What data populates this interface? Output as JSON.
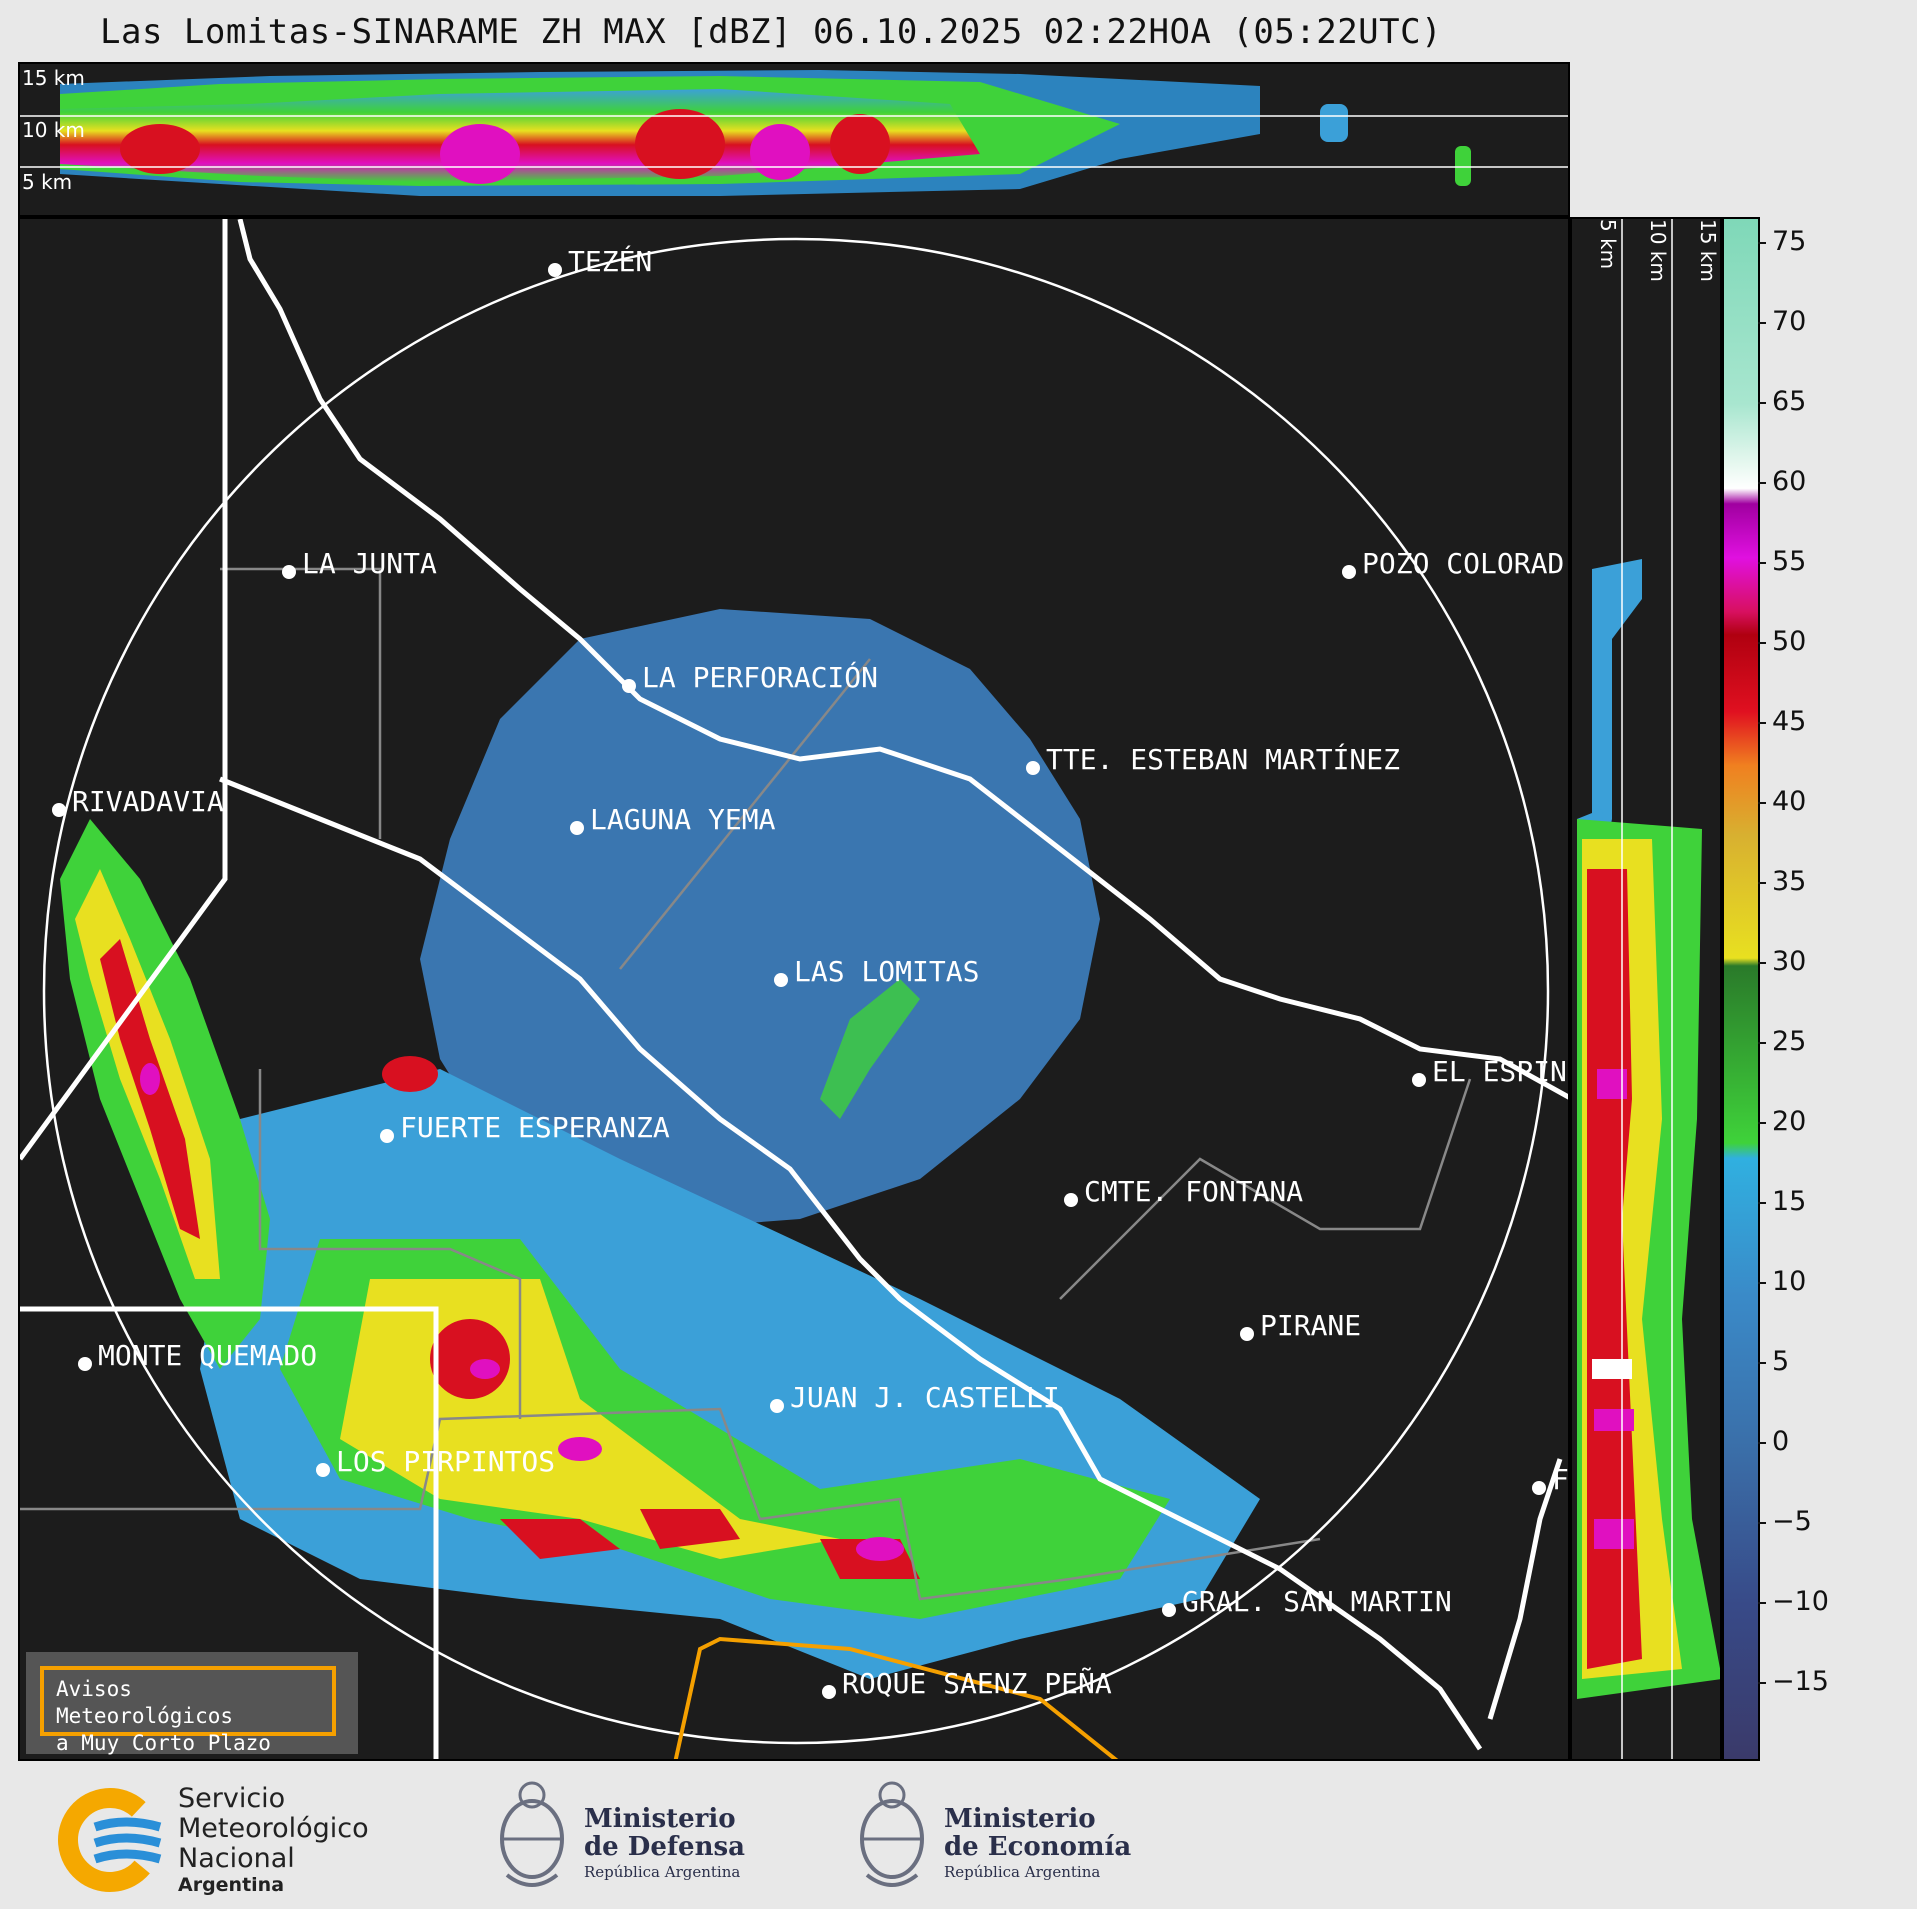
{
  "title": "Las Lomitas-SINARAME ZH MAX [dBZ] 06.10.2025 02:22HOA (05:22UTC)",
  "top_panel": {
    "height_labels": [
      "15 km",
      "10 km",
      "5 km"
    ]
  },
  "right_panel": {
    "height_labels": [
      "5 km",
      "10 km",
      "15 km"
    ]
  },
  "colorbar": {
    "ticks": [
      "75",
      "70",
      "65",
      "60",
      "55",
      "50",
      "45",
      "40",
      "35",
      "30",
      "25",
      "20",
      "15",
      "10",
      "5",
      "0",
      "−5",
      "−10",
      "−15"
    ]
  },
  "cities": [
    {
      "name": "TEZÉN"
    },
    {
      "name": "LA JUNTA"
    },
    {
      "name": "POZO COLORAD"
    },
    {
      "name": "LA PERFORACIÓN"
    },
    {
      "name": "TTE. ESTEBAN MARTÍNEZ"
    },
    {
      "name": "RIVADAVIA"
    },
    {
      "name": "LAGUNA YEMA"
    },
    {
      "name": "LAS LOMITAS"
    },
    {
      "name": "EL ESPIN"
    },
    {
      "name": "FUERTE ESPERANZA"
    },
    {
      "name": "CMTE. FONTANA"
    },
    {
      "name": "PIRANE"
    },
    {
      "name": "MONTE QUEMADO"
    },
    {
      "name": "JUAN J. CASTELLI"
    },
    {
      "name": "LOS PIRPINTOS"
    },
    {
      "name": "GRAL. SAN MARTIN"
    },
    {
      "name": "ROQUE SAENZ PEÑA"
    },
    {
      "name": "F"
    }
  ],
  "warning_box": {
    "line1": "Avisos Meteorológicos",
    "line2": "a Muy Corto Plazo"
  },
  "footer": {
    "smn": {
      "line1": "Servicio",
      "line2": "Meteorológico",
      "line3": "Nacional",
      "line4": "Argentina"
    },
    "defensa": {
      "line1": "Ministerio",
      "line2": "de Defensa",
      "line3": "República Argentina"
    },
    "economia": {
      "line1": "Ministerio",
      "line2": "de Economía",
      "line3": "República Argentina"
    }
  },
  "colors": {
    "map_bg": "#1c1c1c",
    "boundary": "#ffffff",
    "warning_outline": "#f5a000"
  }
}
